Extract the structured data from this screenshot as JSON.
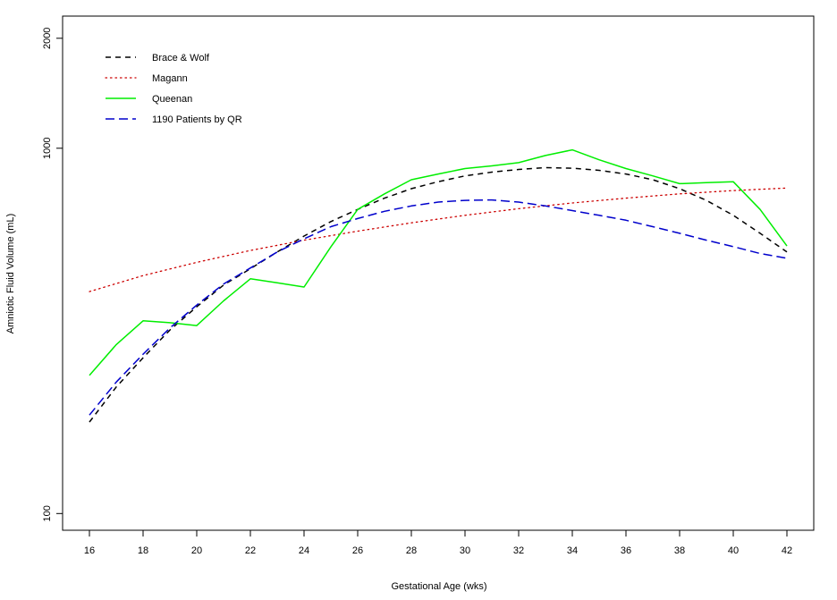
{
  "chart_data": {
    "type": "line",
    "title": "",
    "xlabel": "Gestational Age (wks)",
    "ylabel": "Amniotic Fluid Volume (mL)",
    "xlim": [
      15,
      43
    ],
    "ylim": [
      90,
      2300
    ],
    "yscale": "log",
    "grid": false,
    "legend_position": "top-left",
    "x_ticks": [
      16,
      18,
      20,
      22,
      24,
      26,
      28,
      30,
      32,
      34,
      36,
      38,
      40,
      42
    ],
    "y_ticks": [
      100,
      1000,
      2000
    ],
    "series": [
      {
        "name": "Brace & Wolf",
        "color": "#000000",
        "dash": "dashed",
        "x": [
          16,
          17,
          18,
          19,
          20,
          21,
          22,
          23,
          24,
          25,
          26,
          27,
          28,
          29,
          30,
          31,
          32,
          33,
          34,
          35,
          36,
          37,
          38,
          39,
          40,
          41,
          42
        ],
        "y": [
          178,
          222,
          267,
          318,
          368,
          422,
          468,
          520,
          575,
          630,
          680,
          730,
          775,
          810,
          840,
          860,
          875,
          885,
          882,
          870,
          850,
          820,
          775,
          720,
          655,
          585,
          520
        ]
      },
      {
        "name": "Magann",
        "color": "#cc0000",
        "dash": "dotted",
        "x": [
          16,
          18,
          20,
          22,
          24,
          26,
          28,
          30,
          32,
          34,
          36,
          38,
          40,
          42
        ],
        "y": [
          405,
          448,
          487,
          525,
          560,
          593,
          625,
          655,
          683,
          708,
          730,
          750,
          766,
          778
        ]
      },
      {
        "name": "Queenan",
        "color": "#00ee00",
        "dash": "solid",
        "x": [
          16,
          17,
          18,
          19,
          20,
          21,
          22,
          23,
          24,
          25,
          26,
          27,
          28,
          29,
          30,
          31,
          32,
          33,
          34,
          35,
          36,
          37,
          38,
          39,
          40,
          41,
          42
        ],
        "y": [
          239,
          290,
          337,
          333,
          327,
          382,
          439,
          428,
          417,
          537,
          680,
          750,
          820,
          850,
          880,
          895,
          913,
          955,
          990,
          930,
          880,
          840,
          800,
          805,
          810,
          680,
          540
        ]
      },
      {
        "name": "1190 Patients by QR",
        "color": "#0000cc",
        "dash": "longdash",
        "x": [
          16,
          17,
          18,
          19,
          20,
          21,
          22,
          23,
          24,
          25,
          26,
          27,
          28,
          29,
          30,
          31,
          32,
          33,
          34,
          35,
          36,
          37,
          38,
          39,
          40,
          41,
          42
        ],
        "y": [
          186,
          229,
          273,
          322,
          372,
          425,
          470,
          520,
          565,
          610,
          642,
          672,
          695,
          712,
          720,
          722,
          712,
          695,
          675,
          655,
          635,
          610,
          585,
          560,
          538,
          515,
          500
        ]
      }
    ]
  }
}
